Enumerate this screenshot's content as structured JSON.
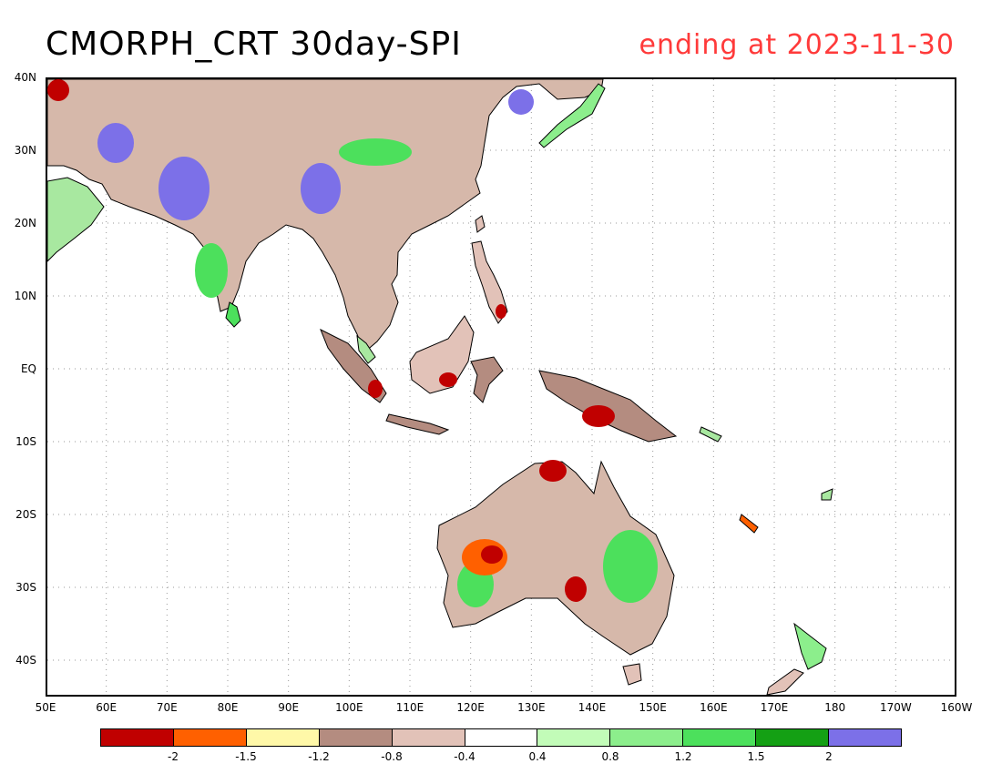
{
  "title": "CMORPH_CRT 30day-SPI",
  "subtitle": "ending at 2023-11-30",
  "map": {
    "lat_labels": [
      "40N",
      "30N",
      "20N",
      "10N",
      "EQ",
      "10S",
      "20S",
      "30S",
      "40S"
    ],
    "lon_labels": [
      "50E",
      "60E",
      "70E",
      "80E",
      "90E",
      "100E",
      "110E",
      "120E",
      "130E",
      "140E",
      "150E",
      "160E",
      "170E",
      "180",
      "170W",
      "160W"
    ],
    "lat_range": [
      -45,
      40
    ],
    "lon_range": [
      50,
      200
    ],
    "grid": true
  },
  "legend": {
    "colors": [
      "#c00000",
      "#ff6000",
      "#fff8a8",
      "#b48c80",
      "#e2c2b8",
      "#ffffff",
      "#c2fcb8",
      "#8cee8c",
      "#4ce05c",
      "#14a014",
      "#7c70e8"
    ],
    "tick_labels": [
      "-2",
      "-1.5",
      "-1.2",
      "-0.8",
      "-0.4",
      "0.4",
      "0.8",
      "1.2",
      "1.5",
      "2"
    ]
  }
}
